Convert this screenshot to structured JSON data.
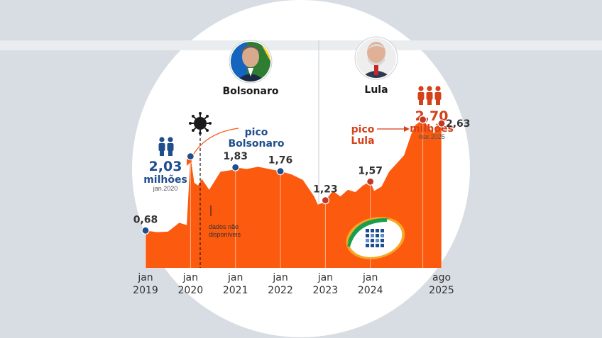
{
  "chart_data": {
    "type": "area",
    "x_ticks": [
      {
        "month": "jan",
        "year": "2019"
      },
      {
        "month": "jan",
        "year": "2020"
      },
      {
        "month": "jan",
        "year": "2021"
      },
      {
        "month": "jan",
        "year": "2022"
      },
      {
        "month": "jan",
        "year": "2023"
      },
      {
        "month": "jan",
        "year": "2024"
      },
      {
        "month": "ago",
        "year": "2025"
      }
    ],
    "series": [
      {
        "x": [
          "2019-01",
          "2019-04",
          "2019-07",
          "2019-10",
          "2019-12",
          "2020-01",
          "2020-02",
          "2020-03",
          "2020-04",
          "2020-06",
          "2020-09",
          "2020-12",
          "2021-01",
          "2021-04",
          "2021-07",
          "2021-10",
          "2022-01",
          "2022-04",
          "2022-07",
          "2022-10",
          "2022-11",
          "2022-12",
          "2023-01",
          "2023-03",
          "2023-05",
          "2023-07",
          "2023-09",
          "2023-11",
          "2024-01",
          "2024-02",
          "2024-04",
          "2024-06",
          "2024-08",
          "2024-10",
          "2024-12",
          "2025-01",
          "2025-03",
          "2025-05",
          "2025-06",
          "2025-07",
          "2025-08"
        ],
        "y": [
          0.68,
          0.65,
          0.66,
          0.82,
          0.78,
          2.03,
          1.55,
          1.5,
          1.62,
          1.42,
          1.75,
          1.78,
          1.83,
          1.8,
          1.84,
          1.8,
          1.76,
          1.7,
          1.6,
          1.3,
          1.15,
          1.18,
          1.23,
          1.4,
          1.3,
          1.42,
          1.38,
          1.5,
          1.57,
          1.4,
          1.48,
          1.75,
          1.9,
          2.05,
          2.45,
          2.6,
          2.7,
          2.52,
          2.45,
          2.6,
          2.63
        ]
      }
    ],
    "ylim": [
      0,
      3.2
    ],
    "point_labels": [
      {
        "x": "2019-01",
        "y": 0.68,
        "text": "0,68",
        "color": "#1f4e8c"
      },
      {
        "x": "2020-01",
        "y": 2.03,
        "text": "",
        "color": "#1f4e8c"
      },
      {
        "x": "2021-01",
        "y": 1.83,
        "text": "1,83",
        "color": "#1f4e8c"
      },
      {
        "x": "2022-01",
        "y": 1.76,
        "text": "1,76",
        "color": "#1f4e8c"
      },
      {
        "x": "2023-01",
        "y": 1.23,
        "text": "1,23",
        "color": "#c0392b"
      },
      {
        "x": "2024-01",
        "y": 1.57,
        "text": "1,57",
        "color": "#c0392b"
      },
      {
        "x": "2025-03",
        "y": 2.7,
        "text": "",
        "color": "#c0392b"
      },
      {
        "x": "2025-08",
        "y": 2.63,
        "text": "2,63",
        "color": "#c0392b"
      }
    ],
    "peak_bolsonaro": {
      "value": "2,03",
      "unit": "milhões",
      "date": "jan.2020",
      "label_line1": "pico",
      "label_line2": "Bolsonaro"
    },
    "peak_lula": {
      "value": "2,70",
      "unit": "milhões",
      "date": "mar.2025",
      "label_line1": "pico",
      "label_line2": "Lula"
    },
    "annotation": {
      "line1": "dados não",
      "line2": "disponíveis"
    },
    "presidents": [
      {
        "name": "Bolsonaro"
      },
      {
        "name": "Lula"
      }
    ],
    "colors": {
      "area": "#fb5a0f",
      "bolsonaro": "#1f4e8c",
      "lula": "#d4421a",
      "background": "#d7dde3"
    },
    "icons": [
      "virus-icon",
      "people-icon",
      "inss-logo-icon"
    ]
  }
}
